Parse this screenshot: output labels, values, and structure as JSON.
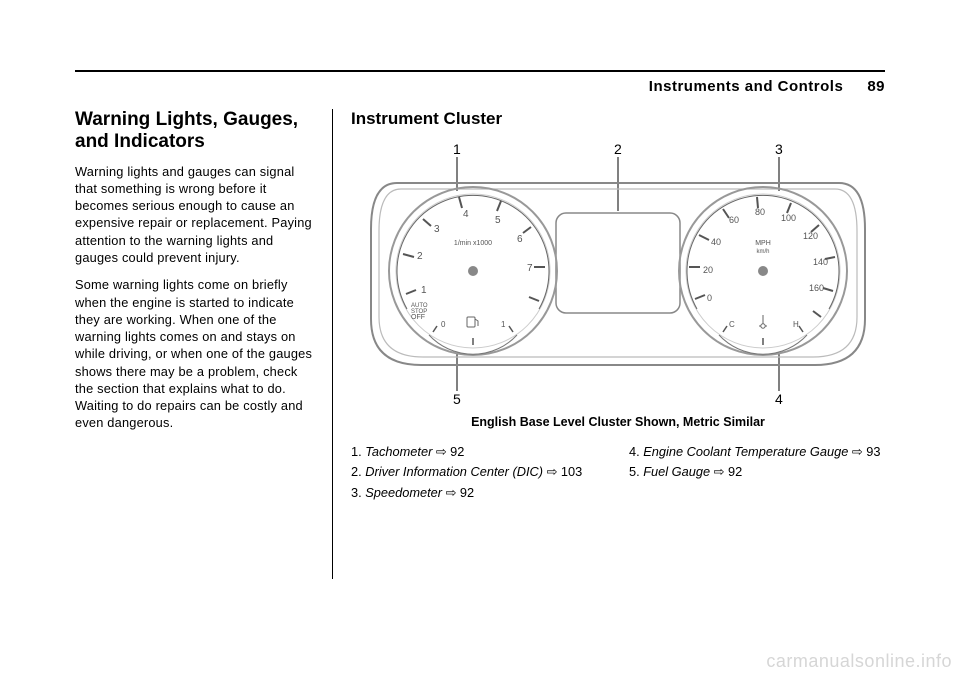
{
  "header": {
    "chapter": "Instruments and Controls",
    "page_num": "89"
  },
  "left": {
    "h1": "Warning Lights, Gauges, and Indicators",
    "p1": "Warning lights and gauges can signal that something is wrong before it becomes serious enough to cause an expensive repair or replacement. Paying attention to the warning lights and gauges could prevent injury.",
    "p2": "Some warning lights come on briefly when the engine is started to indicate they are working. When one of the warning lights comes on and stays on while driving, or when one of the gauges shows there may be a problem, check the section that explains what to do. Waiting to do repairs can be costly and even dangerous."
  },
  "right": {
    "h2": "Instrument Cluster",
    "caption": "English Base Level Cluster Shown, Metric Similar",
    "callouts": {
      "c1": "1",
      "c2": "2",
      "c3": "3",
      "c4": "4",
      "c5": "5"
    },
    "legend_left": [
      {
        "n": "1.",
        "name": "Tachometer",
        "ref": "⇨ 92"
      },
      {
        "n": "2.",
        "name": "Driver Information Center (DIC)",
        "ref": "⇨ 103"
      },
      {
        "n": "3.",
        "name": "Speedometer",
        "ref": "⇨ 92"
      }
    ],
    "legend_right": [
      {
        "n": "4.",
        "name": "Engine Coolant Temperature Gauge",
        "ref": "⇨ 93"
      },
      {
        "n": "5.",
        "name": "Fuel Gauge",
        "ref": "⇨ 92"
      }
    ],
    "tach": {
      "unit": "1/min x1000",
      "labels": [
        "1",
        "2",
        "3",
        "4",
        "5",
        "6",
        "7"
      ],
      "off": "OFF",
      "auto": "AUTO\nSTOP",
      "fuel_ticks": [
        "0",
        "1"
      ]
    },
    "speedo": {
      "unit_top": "MPH",
      "unit_bot": "km/h",
      "labels": [
        "0",
        "20",
        "40",
        "60",
        "80",
        "100",
        "120",
        "140",
        "160"
      ],
      "temp": {
        "c": "C",
        "h": "H"
      }
    }
  },
  "watermark": "carmanualsonline.info",
  "colors": {
    "line": "#555555",
    "light": "#cfcfcf",
    "bg": "#ffffff"
  }
}
